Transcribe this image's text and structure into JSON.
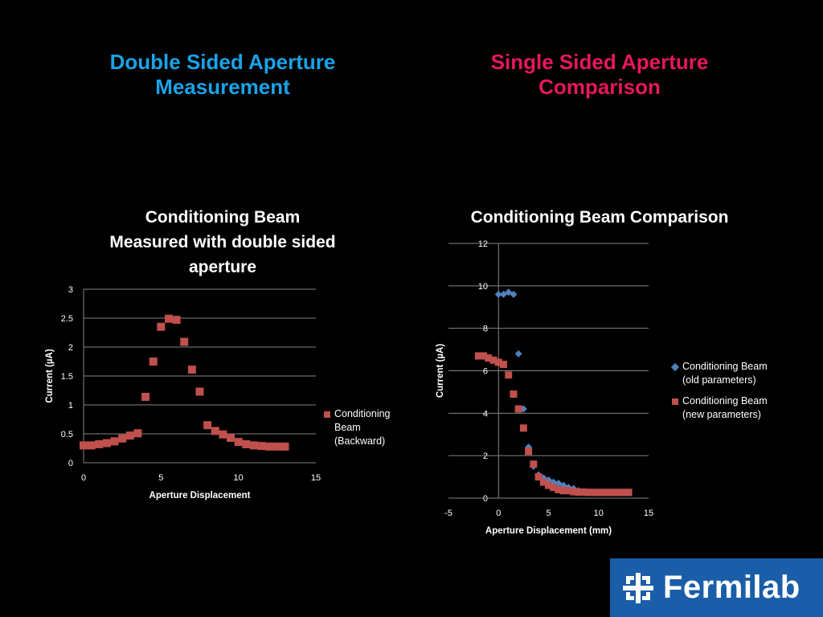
{
  "headings": {
    "left": [
      "Double Sided Aperture",
      "Measurement"
    ],
    "right": [
      "Single Sided Aperture",
      "Comparison"
    ],
    "left_color": "#1aa3e8",
    "right_color": "#e8175d"
  },
  "logo": {
    "text": "Fermilab",
    "background": "#1a5da8",
    "icon": "fermilab-logo-icon"
  },
  "chart_data": [
    {
      "type": "scatter",
      "title": [
        "Conditioning Beam",
        "Measured with double sided",
        "aperture"
      ],
      "xlabel": "Aperture Displacement",
      "ylabel": "Current (µA)",
      "xlim": [
        0,
        15
      ],
      "ylim": [
        0,
        3
      ],
      "xticks": [
        "0",
        "5",
        "10",
        "15"
      ],
      "yticks": [
        "0",
        "0.5",
        "1",
        "1.5",
        "2",
        "2.5",
        "3"
      ],
      "grid": true,
      "legend_position": "right",
      "series": [
        {
          "name": [
            "Conditioning",
            "Beam",
            "(Backward)"
          ],
          "color": "#c0504d",
          "marker": "square",
          "x": [
            0,
            0.5,
            1,
            1.5,
            2,
            2.5,
            3,
            3.5,
            4,
            4.5,
            5,
            5.5,
            6,
            6.5,
            7,
            7.5,
            8,
            8.5,
            9,
            9.5,
            10,
            10.5,
            11,
            11.5,
            12,
            12.5,
            13
          ],
          "y": [
            0.3,
            0.3,
            0.32,
            0.34,
            0.37,
            0.42,
            0.47,
            0.51,
            1.14,
            1.75,
            2.35,
            2.49,
            2.47,
            2.09,
            1.61,
            1.23,
            0.65,
            0.55,
            0.49,
            0.43,
            0.36,
            0.32,
            0.3,
            0.29,
            0.28,
            0.28,
            0.28
          ]
        }
      ]
    },
    {
      "type": "scatter",
      "title": [
        "Conditioning Beam Comparison"
      ],
      "xlabel": "Aperture Displacement (mm)",
      "ylabel": "Current (µA)",
      "xlim": [
        -5,
        15
      ],
      "ylim": [
        0,
        12
      ],
      "xticks": [
        "-5",
        "0",
        "5",
        "10",
        "15"
      ],
      "yticks": [
        "0",
        "2",
        "4",
        "6",
        "8",
        "10",
        "12"
      ],
      "grid": true,
      "legend_position": "right",
      "series": [
        {
          "name": [
            "Conditioning Beam",
            "(old parameters)"
          ],
          "color": "#4f81bd",
          "marker": "diamond",
          "x": [
            0,
            0.5,
            1,
            1.5,
            2,
            2.5,
            3,
            3.5,
            4,
            4.5,
            5,
            5.5,
            6,
            6.5,
            7,
            7.5,
            8,
            8.5,
            9,
            9.5,
            10,
            10.5,
            11,
            11.5,
            12,
            12.5,
            13
          ],
          "y": [
            9.6,
            9.6,
            9.7,
            9.6,
            6.8,
            4.2,
            2.4,
            1.5,
            1.1,
            0.95,
            0.85,
            0.75,
            0.7,
            0.6,
            0.5,
            0.45,
            0.35,
            0.3,
            0.28,
            0.27,
            0.27,
            0.26,
            0.26,
            0.26,
            0.26,
            0.26,
            0.26
          ]
        },
        {
          "name": [
            "Conditioning Beam",
            "(new parameters)"
          ],
          "color": "#c0504d",
          "marker": "square",
          "x": [
            -2,
            -1.5,
            -1,
            -0.5,
            0,
            0.5,
            1,
            1.5,
            2,
            2.5,
            3,
            3.5,
            4,
            4.5,
            5,
            5.5,
            6,
            6.5,
            7,
            7.5,
            8,
            8.5,
            9,
            9.5,
            10,
            10.5,
            11,
            11.5,
            12,
            12.5,
            13
          ],
          "y": [
            6.7,
            6.7,
            6.6,
            6.5,
            6.4,
            6.3,
            5.8,
            4.9,
            4.2,
            3.3,
            2.2,
            1.6,
            1.0,
            0.75,
            0.6,
            0.5,
            0.4,
            0.35,
            0.35,
            0.3,
            0.28,
            0.28,
            0.27,
            0.27,
            0.27,
            0.27,
            0.27,
            0.27,
            0.27,
            0.27,
            0.27
          ]
        }
      ]
    }
  ]
}
